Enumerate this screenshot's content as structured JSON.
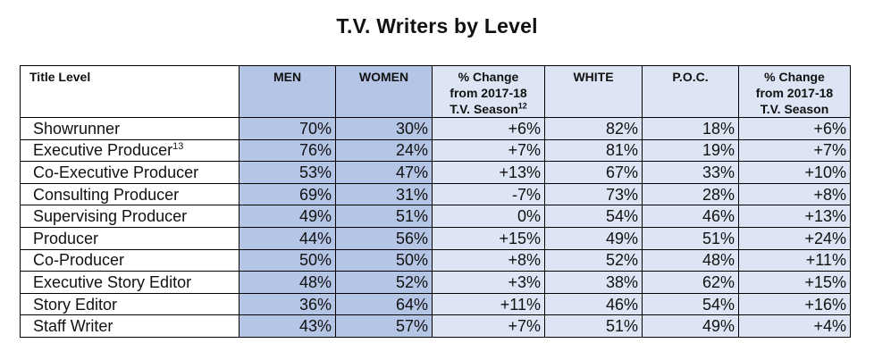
{
  "title": "T.V. Writers by Level",
  "headers": {
    "title_level": "Title Level",
    "men": "MEN",
    "women": "WOMEN",
    "change1_line1": "% Change",
    "change1_line2": "from 2017-18",
    "change1_line3": "T.V. Season",
    "change1_sup": "12",
    "white": "WHITE",
    "poc": "P.O.C.",
    "change2_line1": "% Change",
    "change2_line2": "from 2017-18",
    "change2_line3": "T.V. Season"
  },
  "rows": [
    {
      "label": "Showrunner",
      "sup": "",
      "men": "70%",
      "women": "30%",
      "change1": "+6%",
      "white": "82%",
      "poc": "18%",
      "change2": "+6%"
    },
    {
      "label": "Executive Producer",
      "sup": "13",
      "men": "76%",
      "women": "24%",
      "change1": "+7%",
      "white": "81%",
      "poc": "19%",
      "change2": "+7%"
    },
    {
      "label": "Co-Executive Producer",
      "sup": "",
      "men": "53%",
      "women": "47%",
      "change1": "+13%",
      "white": "67%",
      "poc": "33%",
      "change2": "+10%"
    },
    {
      "label": "Consulting Producer",
      "sup": "",
      "men": "69%",
      "women": "31%",
      "change1": "-7%",
      "white": "73%",
      "poc": "28%",
      "change2": "+8%"
    },
    {
      "label": "Supervising Producer",
      "sup": "",
      "men": "49%",
      "women": "51%",
      "change1": "0%",
      "white": "54%",
      "poc": "46%",
      "change2": "+13%"
    },
    {
      "label": "Producer",
      "sup": "",
      "men": "44%",
      "women": "56%",
      "change1": "+15%",
      "white": "49%",
      "poc": "51%",
      "change2": "+24%"
    },
    {
      "label": "Co-Producer",
      "sup": "",
      "men": "50%",
      "women": "50%",
      "change1": "+8%",
      "white": "52%",
      "poc": "48%",
      "change2": "+11%"
    },
    {
      "label": "Executive Story Editor",
      "sup": "",
      "men": "48%",
      "women": "52%",
      "change1": "+3%",
      "white": "38%",
      "poc": "62%",
      "change2": "+15%"
    },
    {
      "label": "Story Editor",
      "sup": "",
      "men": "36%",
      "women": "64%",
      "change1": "+11%",
      "white": "46%",
      "poc": "54%",
      "change2": "+16%"
    },
    {
      "label": "Staff Writer",
      "sup": "",
      "men": "43%",
      "women": "57%",
      "change1": "+7%",
      "white": "51%",
      "poc": "49%",
      "change2": "+4%"
    }
  ]
}
